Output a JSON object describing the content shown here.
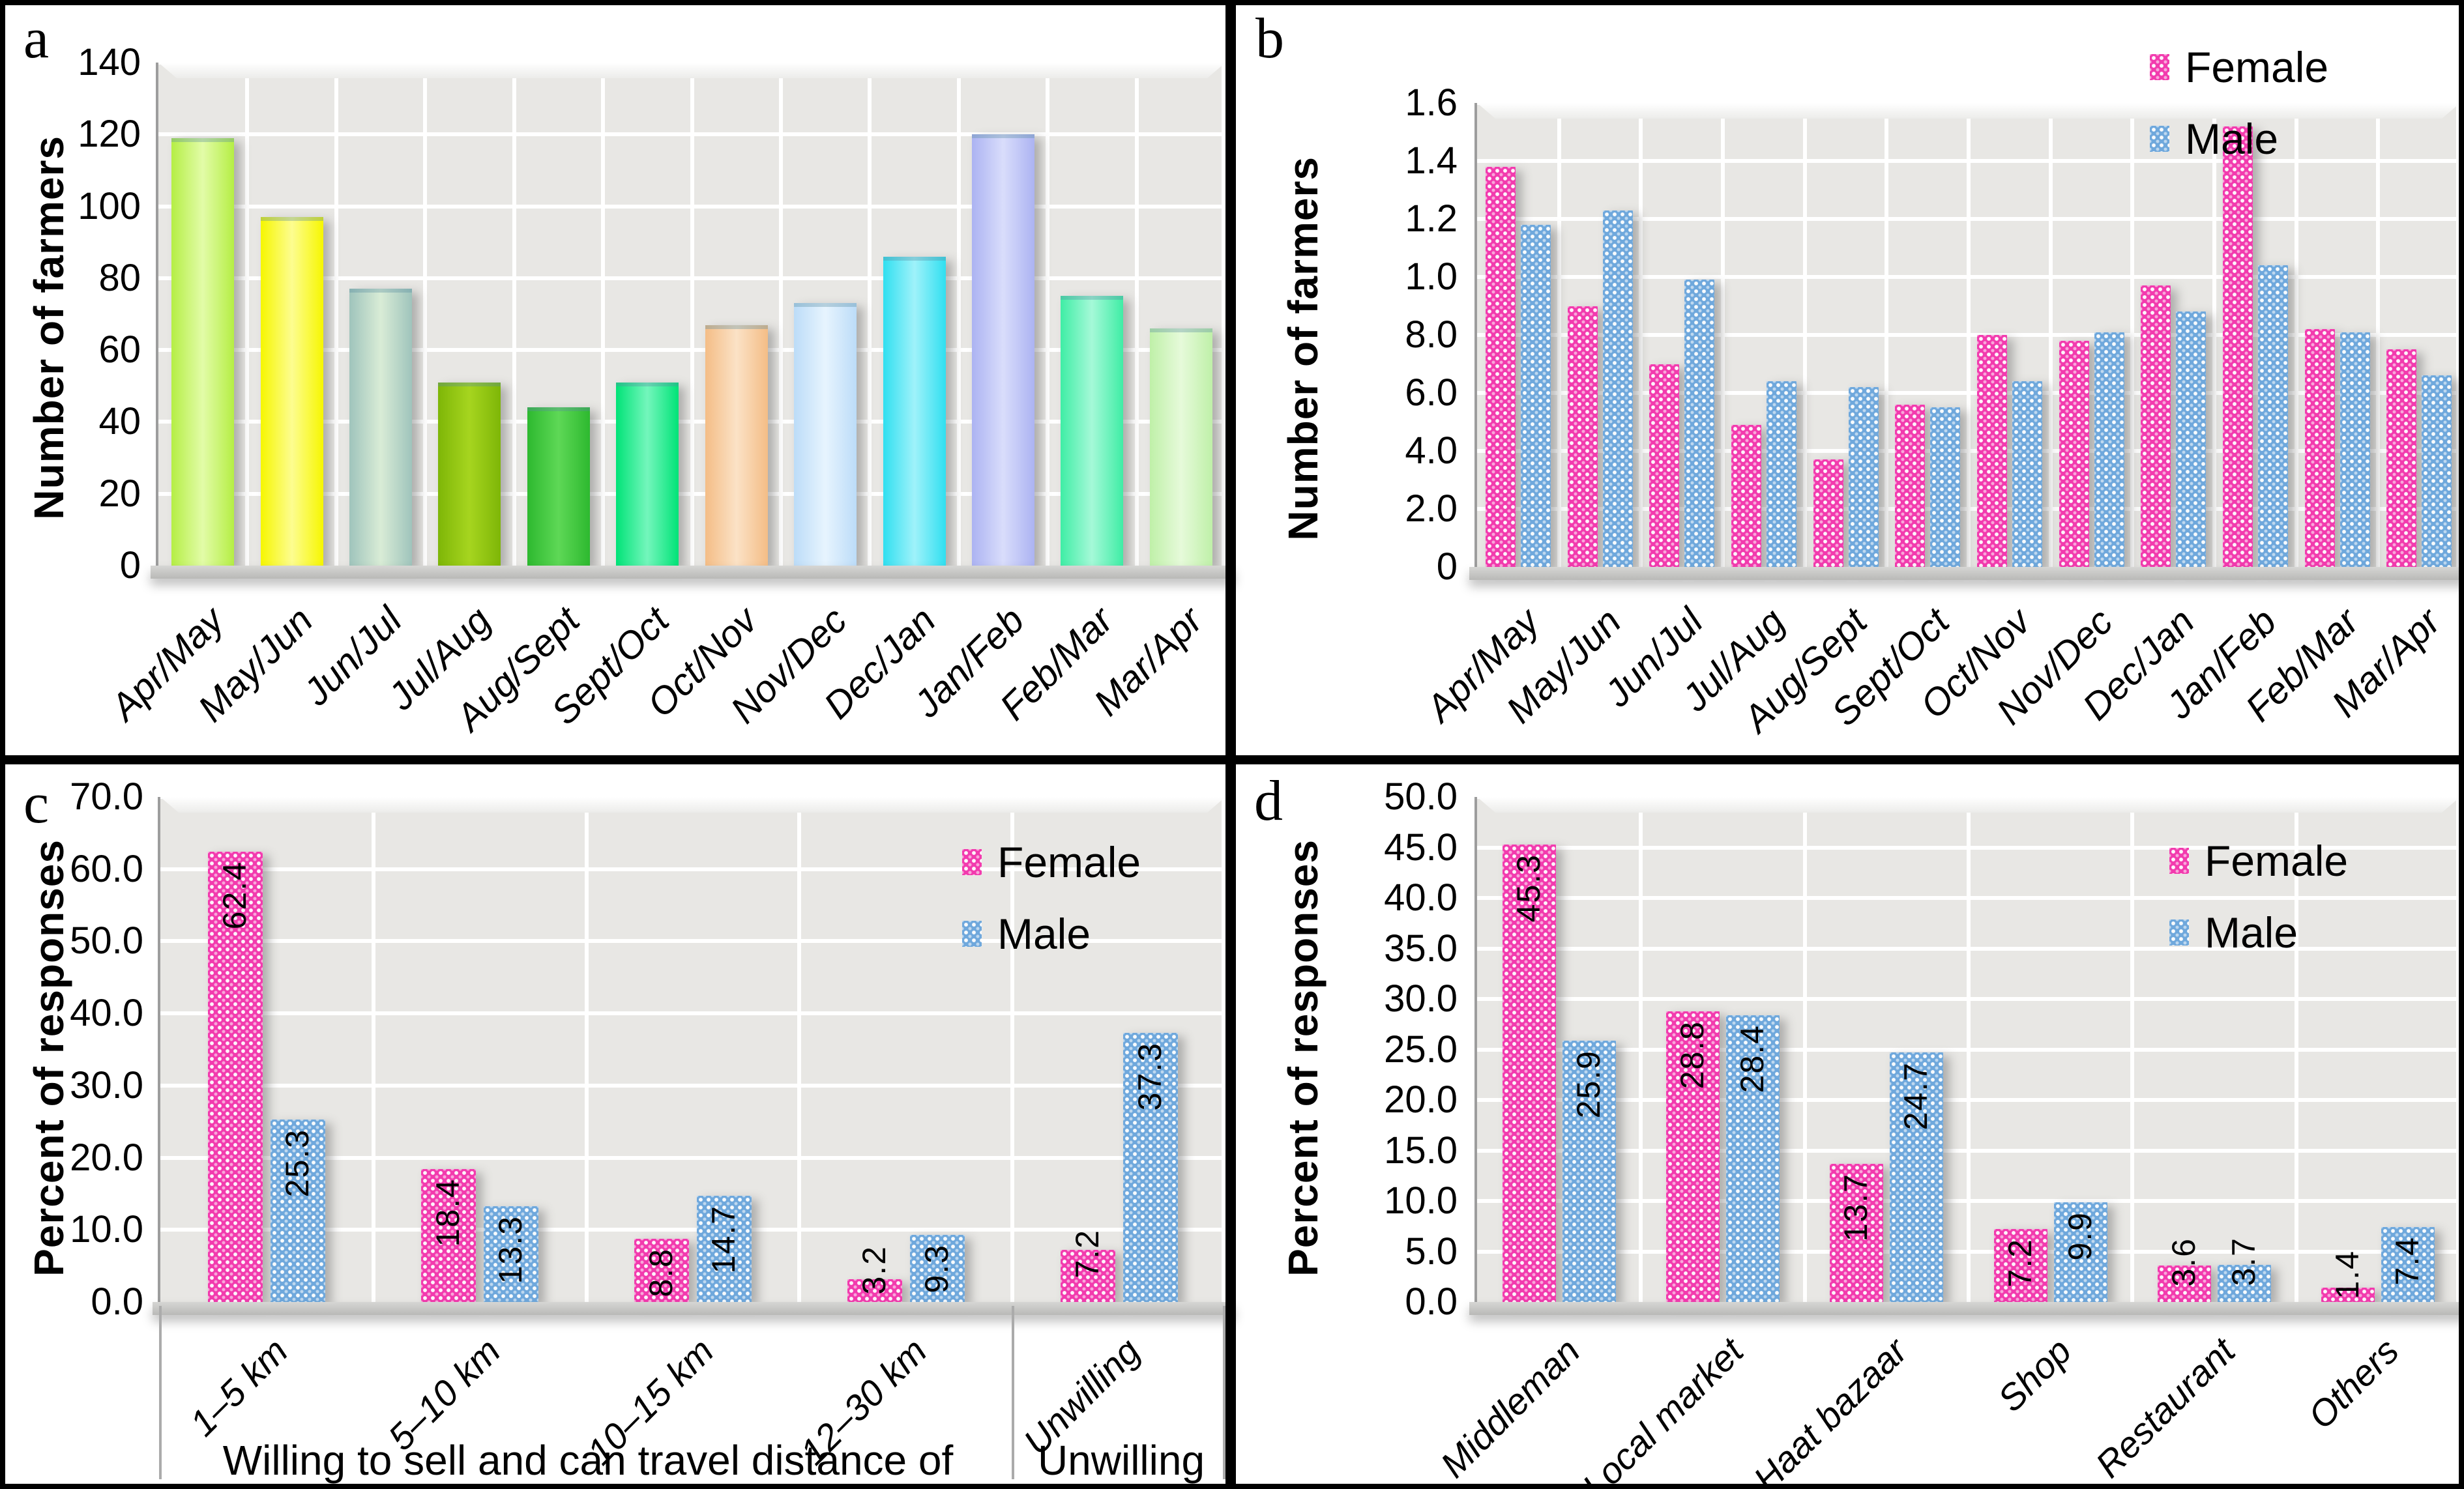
{
  "figure": {
    "panel_letters": [
      "a",
      "b",
      "c",
      "d"
    ]
  },
  "colors": {
    "female": "#F23BAE",
    "male": "#6FA8DC",
    "plot_bg": "#E8E7E4",
    "grid": "#FFFFFF",
    "divider": "#000000",
    "floor": "#C6C6C4",
    "panel_a_bars": [
      {
        "base": "#B5EE45",
        "light": "#E2FCA8"
      },
      {
        "base": "#F6F600",
        "light": "#FDFD90"
      },
      {
        "base": "#9FC4BC",
        "light": "#D9ECD6"
      },
      {
        "base": "#7EB607",
        "light": "#A6D51F"
      },
      {
        "base": "#2DB92F",
        "light": "#5ED856"
      },
      {
        "base": "#00E377",
        "light": "#74F6BC"
      },
      {
        "base": "#F4BD86",
        "light": "#FBE2C6"
      },
      {
        "base": "#BCDCF8",
        "light": "#E7F4FE"
      },
      {
        "base": "#30DFF0",
        "light": "#9FF2FA"
      },
      {
        "base": "#ACB3F2",
        "light": "#D9DDFB"
      },
      {
        "base": "#3FEDA5",
        "light": "#A5F9D8"
      },
      {
        "base": "#BFF0A8",
        "light": "#E6FADA"
      }
    ]
  },
  "chart_data": [
    {
      "panel": "a",
      "type": "bar",
      "title": "",
      "ylabel": "Number of farmers",
      "xlabel": "",
      "categories": [
        "Apr/May",
        "May/Jun",
        "Jun/Jul",
        "Jul/Aug",
        "Aug/Sept",
        "Sept/Oct",
        "Oct/Nov",
        "Nov/Dec",
        "Dec/Jan",
        "Jan/Feb",
        "Feb/Mar",
        "Mar/Apr"
      ],
      "values": [
        119,
        97,
        77,
        51,
        44,
        51,
        67,
        73,
        86,
        120,
        75,
        66
      ],
      "yticks": [
        "0",
        "20",
        "40",
        "60",
        "80",
        "100",
        "120",
        "140"
      ],
      "ylim": [
        0,
        140
      ],
      "grid": true,
      "legend_position": "none"
    },
    {
      "panel": "b",
      "type": "bar",
      "title": "",
      "ylabel": "Number of farmers",
      "xlabel": "",
      "categories": [
        "Apr/May",
        "May/Jun",
        "Jun/Jul",
        "Jul/Aug",
        "Aug/Sept",
        "Sept/Oct",
        "Oct/Nov",
        "Nov/Dec",
        "Dec/Jan",
        "Jan/Feb",
        "Feb/Mar",
        "Mar/Apr"
      ],
      "series": [
        {
          "name": "Female",
          "values": [
            1.38,
            0.9,
            0.7,
            0.49,
            0.37,
            0.56,
            0.8,
            0.78,
            0.97,
            1.52,
            0.82,
            0.75
          ]
        },
        {
          "name": "Male",
          "values": [
            1.18,
            1.23,
            0.99,
            0.64,
            0.62,
            0.55,
            0.64,
            0.81,
            0.88,
            1.04,
            0.81,
            0.66
          ]
        }
      ],
      "yticks": [
        "0",
        "2.0",
        "4.0",
        "6.0",
        "8.0",
        "1.0",
        "1.2",
        "1.4",
        "1.6"
      ],
      "ylim": [
        0,
        1.6
      ],
      "grid": true,
      "legend_position": "top-right"
    },
    {
      "panel": "c",
      "type": "bar",
      "title": "",
      "ylabel": "Percent of responses",
      "xlabel": "Willing to sell and can travel distance of / Unwilling",
      "categories": [
        "1–5 km",
        "5–10 km",
        "10–15 km",
        "12–30 km",
        "Unwilling"
      ],
      "series": [
        {
          "name": "Female",
          "values": [
            62.4,
            18.4,
            8.8,
            3.2,
            7.2
          ]
        },
        {
          "name": "Male",
          "values": [
            25.3,
            13.3,
            14.7,
            9.3,
            37.3
          ]
        }
      ],
      "data_labels": true,
      "group_labels": [
        {
          "label": "Willing to sell and can travel distance of",
          "span": 4
        },
        {
          "label": "Unwilling",
          "span": 1
        }
      ],
      "yticks": [
        "0.0",
        "10.0",
        "20.0",
        "30.0",
        "40.0",
        "50.0",
        "60.0",
        "70.0"
      ],
      "ylim": [
        0,
        70
      ],
      "grid": true,
      "legend_position": "top-right"
    },
    {
      "panel": "d",
      "type": "bar",
      "title": "",
      "ylabel": "Percent of responses",
      "xlabel": "",
      "categories": [
        "Middleman",
        "Local market",
        "Haat bazaar",
        "Shop",
        "Restaurant",
        "Others"
      ],
      "series": [
        {
          "name": "Female",
          "values": [
            45.3,
            28.8,
            13.7,
            7.2,
            3.6,
            1.4
          ]
        },
        {
          "name": "Male",
          "values": [
            25.9,
            28.4,
            24.7,
            9.9,
            3.7,
            7.4
          ]
        }
      ],
      "data_labels": true,
      "yticks": [
        "0.0",
        "5.0",
        "10.0",
        "15.0",
        "20.0",
        "25.0",
        "30.0",
        "35.0",
        "40.0",
        "45.0",
        "50.0"
      ],
      "ylim": [
        0,
        50
      ],
      "grid": true,
      "legend_position": "top-right"
    }
  ]
}
